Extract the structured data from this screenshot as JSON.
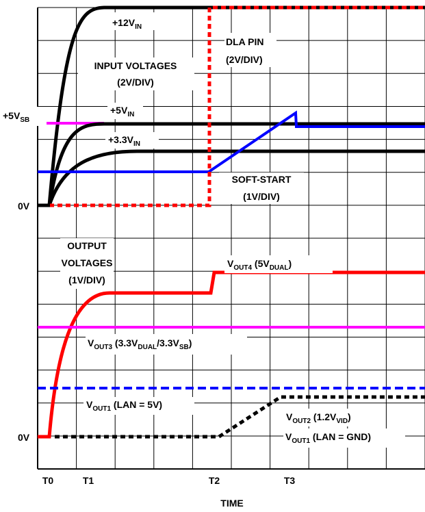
{
  "chart_data": {
    "type": "line",
    "xlabel": "TIME",
    "x_ticks": [
      "T0",
      "T1",
      "T2",
      "T3"
    ],
    "y_ticks": {
      "top": [
        "+5V",
        "0V"
      ],
      "bottom": [
        "0V"
      ]
    },
    "colors": {
      "grid": "#000000",
      "input_voltage": "#000000",
      "sb_rail": "#ff00ff",
      "soft_start": "#0000ff",
      "dla_pin": "#ff0000",
      "vout4": "#ff0000",
      "vout3": "#ff00ff",
      "vout1_lan5v": "#0000ff",
      "vout2": "#000000"
    },
    "annotations": {
      "v12in": {
        "main": "+12V",
        "sub": "IN"
      },
      "dla_line1": "DLA PIN",
      "dla_line2": "(2V/DIV)",
      "input_line1": "INPUT VOLTAGES",
      "input_line2": "(2V/DIV)",
      "v5sb": {
        "main": "+5V",
        "sub": "SB"
      },
      "v5in": {
        "main": "+5V",
        "sub": "IN"
      },
      "v33in": {
        "main": "+3.3V",
        "sub": "IN"
      },
      "softstart_line1": "SOFT-START",
      "softstart_line2": "(1V/DIV)",
      "output_line1": "OUTPUT",
      "output_line2": "VOLTAGES",
      "output_line3": "(1V/DIV)",
      "vout4": {
        "v": "V",
        "sub": "OUT4",
        "rest": " (5V",
        "sub2": "DUAL",
        "end": ")"
      },
      "vout3": {
        "v": "V",
        "sub": "OUT3",
        "rest": " (3.3V",
        "sub2": "DUAL",
        "mid": "/3.3V",
        "sub3": "SB",
        "end": ")"
      },
      "vout1_lan5v": {
        "v": "V",
        "sub": "OUT1",
        "rest": " (LAN = 5V)"
      },
      "vout2": {
        "v": "V",
        "sub": "OUT2",
        "rest": " (1.2V",
        "sub2": "VID",
        "end": ")"
      },
      "vout1_langnd": {
        "v": "V",
        "sub": "OUT1",
        "rest": " (LAN = GND)"
      }
    }
  }
}
